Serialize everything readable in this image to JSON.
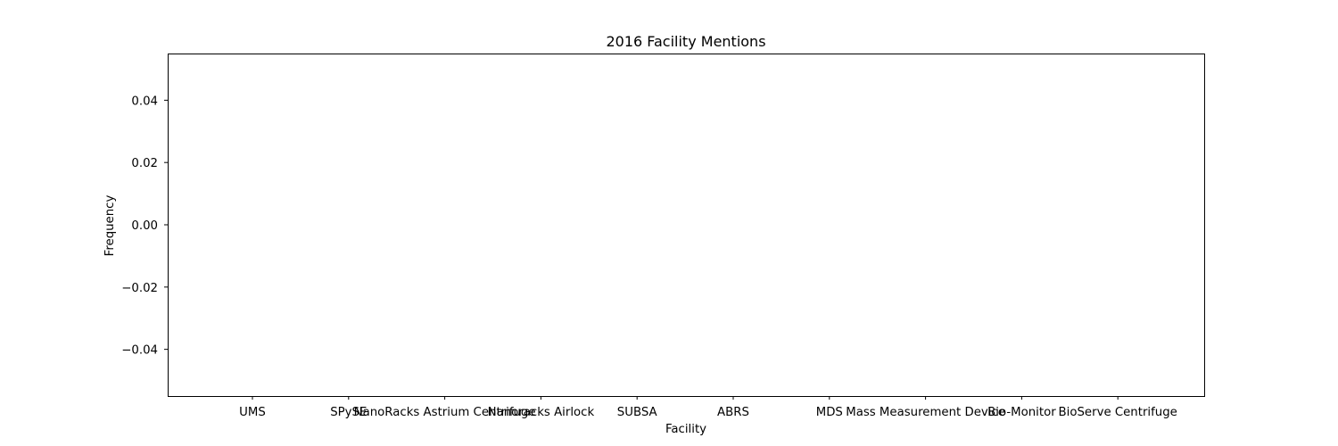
{
  "chart_data": {
    "type": "bar",
    "title": "2016 Facility Mentions",
    "xlabel": "Facility",
    "ylabel": "Frequency",
    "categories": [
      "UMS",
      "SPySE",
      "NanoRacks Astrium Centrifuge",
      "Nanoracks Airlock",
      "SUBSA",
      "ABRS",
      "MDS",
      "Mass Measurement Device",
      "Bio-Monitor",
      "BioServe Centrifuge"
    ],
    "values": [
      0,
      0,
      0,
      0,
      0,
      0,
      0,
      0,
      0,
      0
    ],
    "ylim": [
      -0.055,
      0.055
    ],
    "yticks": [
      0.04,
      0.02,
      0.0,
      -0.02,
      -0.04
    ],
    "ytick_labels": [
      "0.04",
      "0.02",
      "0.00",
      "−0.02",
      "−0.04"
    ],
    "grid": false,
    "legend": "none",
    "colors": {
      "axis": "#000000",
      "bar": "#1f77b4"
    }
  }
}
